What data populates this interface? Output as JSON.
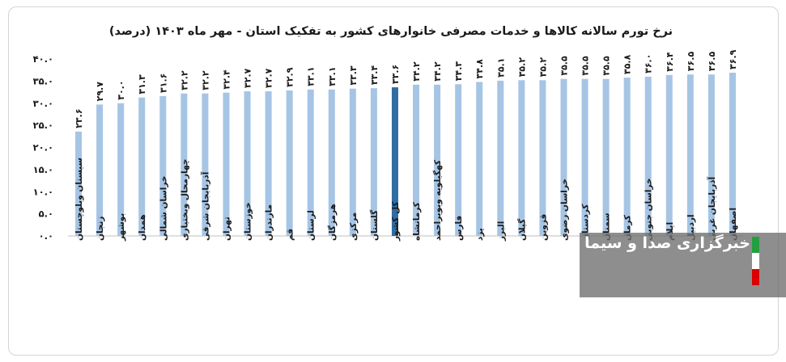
{
  "chart_data": {
    "type": "bar",
    "title": "نرخ تورم سالانه کالاها و خدمات مصرفی خانوارهای کشور به تفکیک استان - مهر ماه ۱۴۰۳ (درصد)",
    "xlabel": "",
    "ylabel": "",
    "ylim": [
      0,
      40
    ],
    "yticks": [
      0,
      5,
      10,
      15,
      20,
      25,
      30,
      35,
      40
    ],
    "ytick_labels": [
      "۰.۰",
      "۵.۰",
      "۱۰.۰",
      "۱۵.۰",
      "۲۰.۰",
      "۲۵.۰",
      "۳۰.۰",
      "۳۵.۰",
      "۴۰.۰"
    ],
    "grid": false,
    "legend": "none",
    "categories": [
      "سیستان وبلوچستان",
      "زنجان",
      "بوشهر",
      "همدان",
      "خراسان شمالی",
      "چهارمحال وبختیاری",
      "آذربایجان شرقی",
      "تهران",
      "خوزستان",
      "مازندران",
      "قم",
      "لرستان",
      "هرمزگان",
      "مرکزی",
      "گلستان",
      "کل کشور",
      "کرمانشاه",
      "کهگیلویه وبویراحمد",
      "فارس",
      "یزد",
      "البرز",
      "گیلان",
      "قزوین",
      "خراسان رضوی",
      "کردستان",
      "سمنان",
      "کرمان",
      "خراسان جنوبی",
      "ایلام",
      "اردبیل",
      "آذربایجان غربی",
      "اصفهان"
    ],
    "values": [
      23.6,
      29.7,
      30.0,
      31.3,
      31.6,
      32.2,
      32.2,
      32.4,
      32.7,
      32.7,
      32.9,
      33.1,
      33.1,
      33.3,
      33.4,
      33.6,
      34.2,
      34.2,
      34.3,
      34.8,
      35.1,
      35.2,
      35.2,
      35.5,
      35.5,
      35.5,
      35.8,
      36.0,
      36.4,
      36.5,
      36.5,
      36.9
    ],
    "value_labels": [
      "۲۳.۶",
      "۲۹.۷",
      "۳۰.۰",
      "۳۱.۳",
      "۳۱.۶",
      "۳۲.۲",
      "۳۲.۲",
      "۳۲.۴",
      "۳۲.۷",
      "۳۲.۷",
      "۳۲.۹",
      "۳۳.۱",
      "۳۳.۱",
      "۳۳.۳",
      "۳۳.۴",
      "۳۳.۶",
      "۳۴.۲",
      "۳۴.۲",
      "۳۴.۳",
      "۳۴.۸",
      "۳۵.۱",
      "۳۵.۲",
      "۳۵.۲",
      "۳۵.۵",
      "۳۵.۵",
      "۳۵.۵",
      "۳۵.۸",
      "۳۶.۰",
      "۳۶.۴",
      "۳۶.۵",
      "۳۶.۵",
      "۳۶.۹"
    ],
    "highlight_category": "کل کشور",
    "colors": {
      "bar": "#a6c5e5",
      "highlight": "#2e6da4",
      "axis": "#bfbfbf",
      "text": "#1a1a1a"
    }
  },
  "watermark": {
    "text": "خبرگزاری صدا و سیما",
    "flag_colors": [
      "#239f40",
      "#ffffff",
      "#da0000"
    ]
  }
}
